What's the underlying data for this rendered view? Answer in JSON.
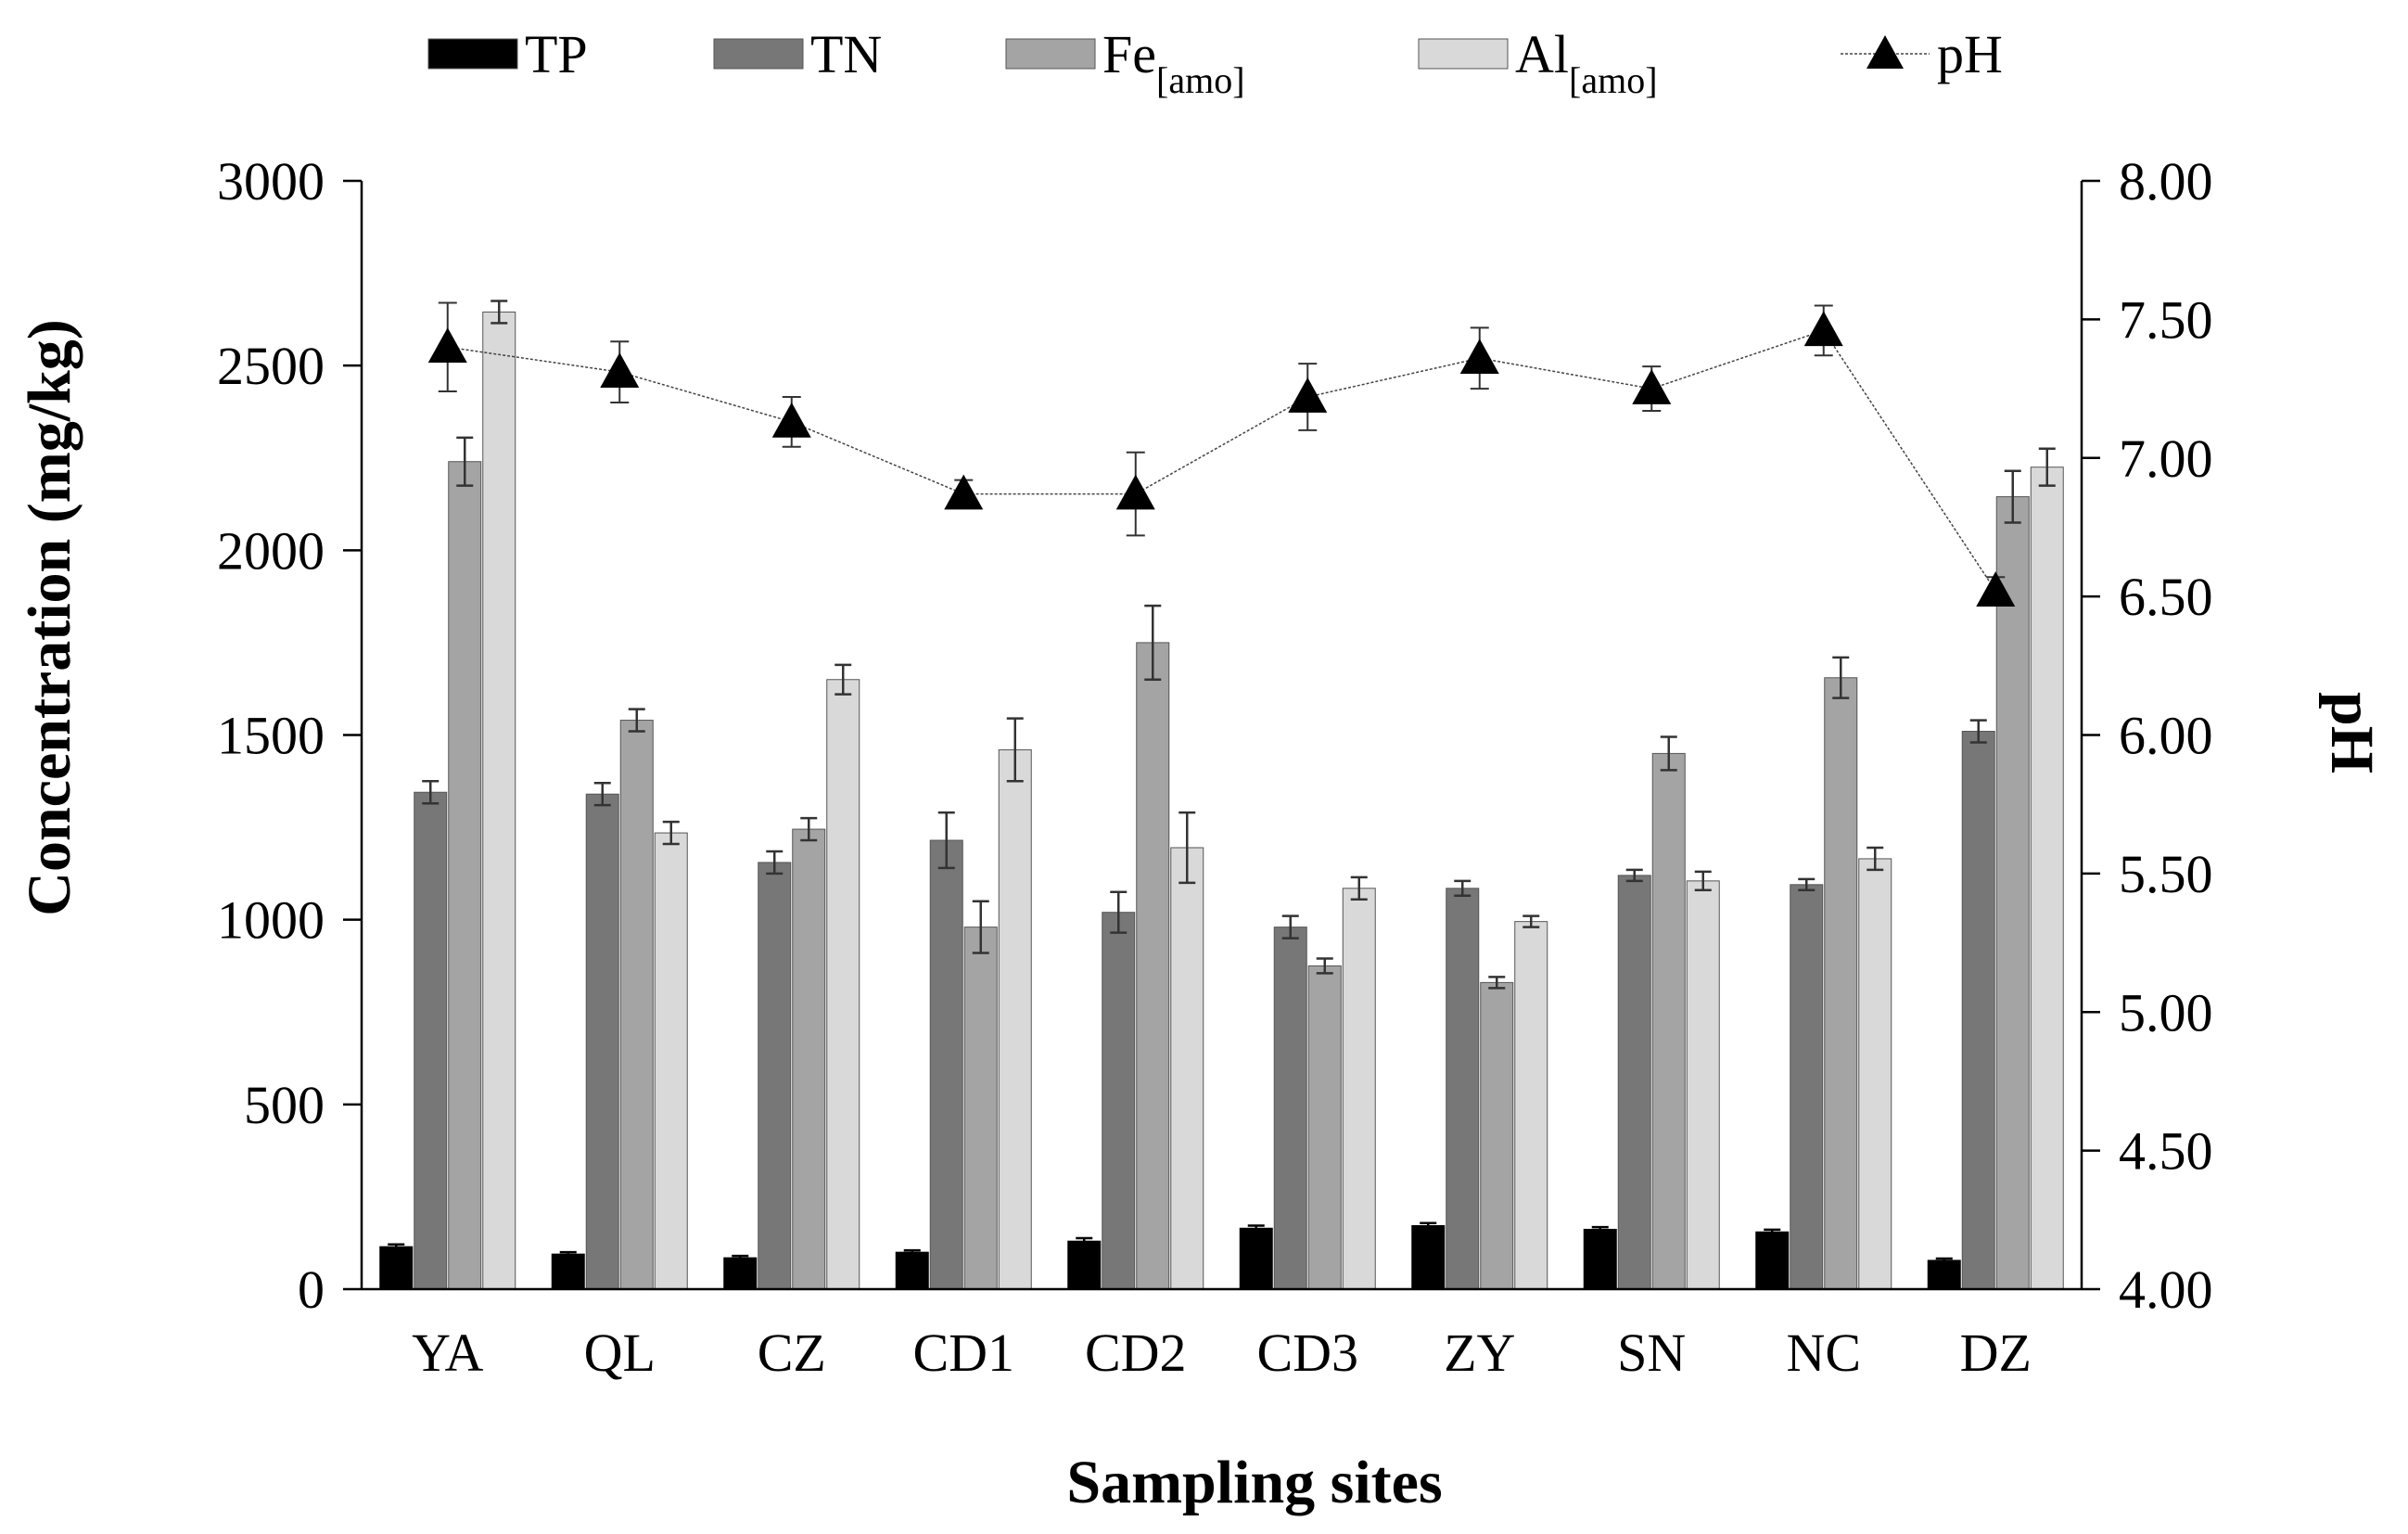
{
  "chart_data": {
    "type": "bar",
    "title": "",
    "xlabel": "Sampling sites",
    "ylabel": "Concentration (mg/kg)",
    "y2label": "pH",
    "categories": [
      "YA",
      "QL",
      "CZ",
      "CD1",
      "CD2",
      "CD3",
      "ZY",
      "SN",
      "NC",
      "DZ"
    ],
    "ylim": [
      0,
      3000
    ],
    "yticks": [
      "0",
      "500",
      "1000",
      "1500",
      "2000",
      "2500",
      "3000"
    ],
    "y2lim": [
      4.0,
      8.0
    ],
    "y2ticks": [
      "4.00",
      "4.50",
      "5.00",
      "5.50",
      "6.00",
      "6.50",
      "7.00",
      "7.50",
      "8.00"
    ],
    "legend_position": "top",
    "series": [
      {
        "name": "TP",
        "sub": "",
        "color": "#000000",
        "values": [
          115,
          95,
          85,
          100,
          130,
          165,
          172,
          162,
          155,
          78
        ],
        "errors": [
          6,
          5,
          5,
          5,
          8,
          7,
          7,
          6,
          6,
          5
        ]
      },
      {
        "name": "TN",
        "sub": "",
        "color": "#777777",
        "values": [
          1345,
          1340,
          1155,
          1215,
          1020,
          980,
          1085,
          1120,
          1095,
          1510
        ],
        "errors": [
          30,
          30,
          30,
          75,
          55,
          30,
          20,
          15,
          15,
          30
        ]
      },
      {
        "name": "Fe",
        "sub": "[amo]",
        "color": "#a4a4a4",
        "values": [
          2240,
          1540,
          1245,
          980,
          1750,
          875,
          830,
          1450,
          1655,
          2145
        ],
        "errors": [
          65,
          30,
          30,
          70,
          100,
          20,
          15,
          45,
          55,
          70
        ]
      },
      {
        "name": "Al",
        "sub": "[amo]",
        "color": "#d9d9d9",
        "values": [
          2645,
          1235,
          1650,
          1460,
          1195,
          1085,
          995,
          1105,
          1165,
          2225
        ],
        "errors": [
          30,
          30,
          40,
          85,
          95,
          30,
          15,
          25,
          30,
          50
        ]
      }
    ],
    "line_series": {
      "name": "pH",
      "axis": "right",
      "marker": "triangle",
      "values": [
        7.4,
        7.31,
        7.13,
        6.87,
        6.87,
        7.22,
        7.36,
        7.25,
        7.46,
        6.52
      ],
      "errors": [
        0.16,
        0.11,
        0.09,
        0.05,
        0.15,
        0.12,
        0.11,
        0.08,
        0.09,
        0.05
      ]
    }
  }
}
